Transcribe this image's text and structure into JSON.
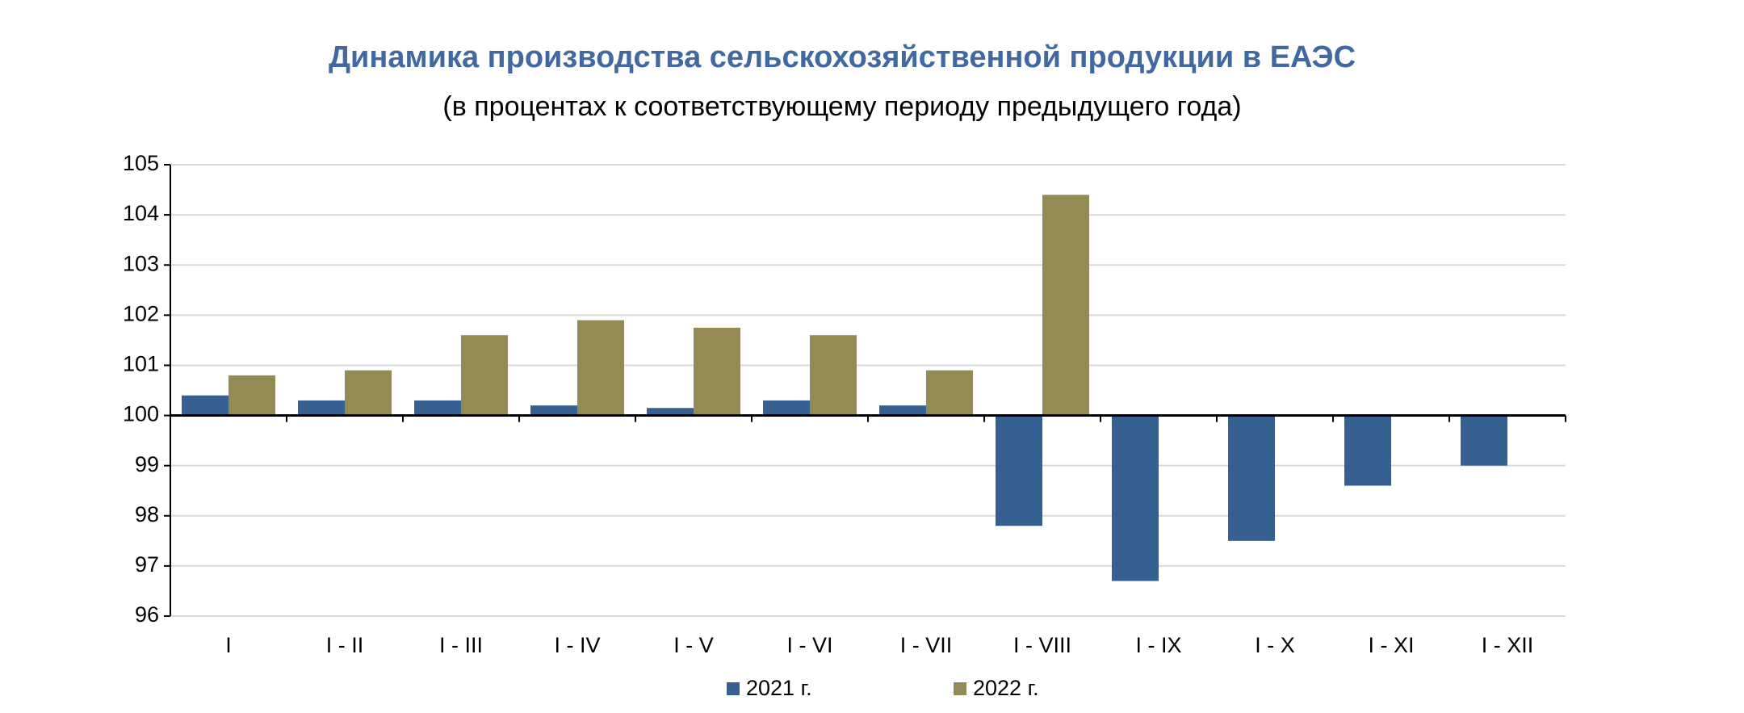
{
  "chart_data": {
    "type": "bar",
    "title": "Динамика производства сельскохозяйственной продукции в ЕАЭС",
    "subtitle": "(в процентах к соответствующему периоду предыдущего года)",
    "categories": [
      "I",
      "I - II",
      "I - III",
      "I - IV",
      "I - V",
      "I - VI",
      "I - VII",
      "I - VIII",
      "I - IX",
      "I - X",
      "I - XI",
      "I - XII"
    ],
    "series": [
      {
        "name": "2021 г.",
        "color": "#376092",
        "values": [
          100.4,
          100.3,
          100.3,
          100.2,
          100.15,
          100.3,
          100.2,
          97.8,
          96.7,
          97.5,
          98.6,
          99.0
        ]
      },
      {
        "name": "2022 г.",
        "color": "#948a54",
        "values": [
          100.8,
          100.9,
          101.6,
          101.9,
          101.75,
          101.6,
          100.9,
          104.4,
          null,
          null,
          null,
          null
        ]
      }
    ],
    "ylim": [
      96,
      105
    ],
    "yticks": [
      96,
      97,
      98,
      99,
      100,
      101,
      102,
      103,
      104,
      105
    ],
    "bar_base": 100,
    "grid": true,
    "legend": "bottom"
  }
}
